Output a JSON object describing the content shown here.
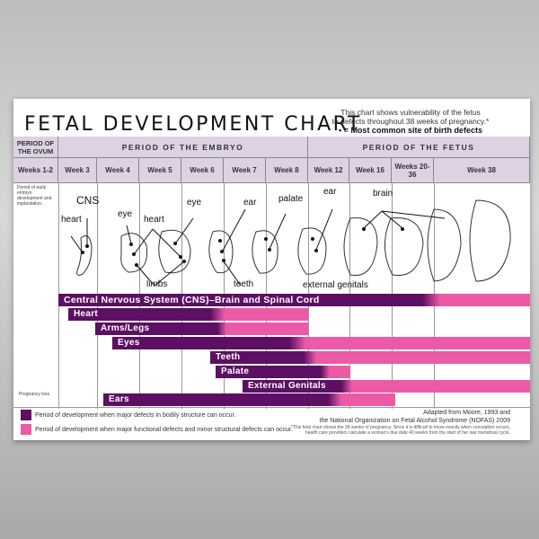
{
  "title": "FETAL DEVELOPMENT CHART",
  "subtitle": {
    "line1": "This chart shows vulnerability of the fetus",
    "line2": "to defects throughout 38 weeks of pregnancy.*",
    "line3": "• = Most common site of birth defects"
  },
  "periods": {
    "ovum": "PERIOD OF THE OVUM",
    "embryo": "PERIOD OF THE EMBRYO",
    "fetus": "PERIOD OF THE FETUS"
  },
  "weeks": [
    "Weeks 1-2",
    "Week 3",
    "Week 4",
    "Week 5",
    "Week 6",
    "Week 7",
    "Week 8",
    "Week 12",
    "Week 16",
    "Weeks 20-36",
    "Week 38"
  ],
  "early_note": "Period of early embryo development and implantation.",
  "pregnancy_loss": "Pregnancy loss",
  "labels": {
    "cns": "CNS",
    "heart1": "heart",
    "eye1": "eye",
    "heart2": "heart",
    "eye2": "eye",
    "limbs": "limbs",
    "ear1": "ear",
    "teeth": "teeth",
    "palate": "palate",
    "ear2": "ear",
    "genitals": "external genitals",
    "brain": "brain"
  },
  "bars": [
    "Central Nervous System (CNS)–Brain and Spinal Cord",
    "Heart",
    "Arms/Legs",
    "Eyes",
    "Teeth",
    "Palate",
    "External Genitals",
    "Ears"
  ],
  "colors": {
    "major": "#5c0f63",
    "minor": "#ec5aa6",
    "header": "#dcd2e4"
  },
  "legend": {
    "major": "Period of development when major defects in bodily structure can occur.",
    "minor": "Period of development when major functional defects and minor structural defects can occur."
  },
  "source": {
    "line1": "Adapted from Moore, 1993 and",
    "line2": "the National Organization on Fetal Alcohol Syndrome (NOFAS) 2009",
    "note": "*This fetal chart shows the 38 weeks of pregnancy. Since it is difficult to know exactly when conception occurs, health care providers calculate a woman's due date 40 weeks from the start of her last menstrual cycle."
  }
}
